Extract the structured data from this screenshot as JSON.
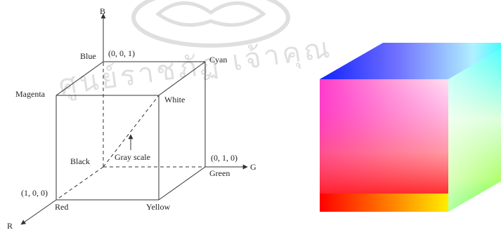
{
  "diagram": {
    "axes": {
      "b": "B",
      "g": "G",
      "r": "R"
    },
    "corners": {
      "blue": "Blue",
      "cyan": "Cyan",
      "magenta": "Magenta",
      "white": "White",
      "black": "Black",
      "green": "Green",
      "red": "Red",
      "yellow": "Yellow"
    },
    "coordinates": {
      "blue": "(0, 0, 1)",
      "green": "(0, 1, 0)",
      "red": "(1, 0, 0)"
    },
    "gray_scale": "Gray scale"
  },
  "colors": {
    "red": "#ff0000",
    "green": "#00ff00",
    "blue": "#0000ff",
    "cyan": "#00ffff",
    "magenta": "#ff00ff",
    "yellow": "#ffff00",
    "white": "#ffffff",
    "black": "#000000"
  },
  "watermark": {
    "text": "ศูนย์ราชภัฏ เจ้าคุณ"
  }
}
